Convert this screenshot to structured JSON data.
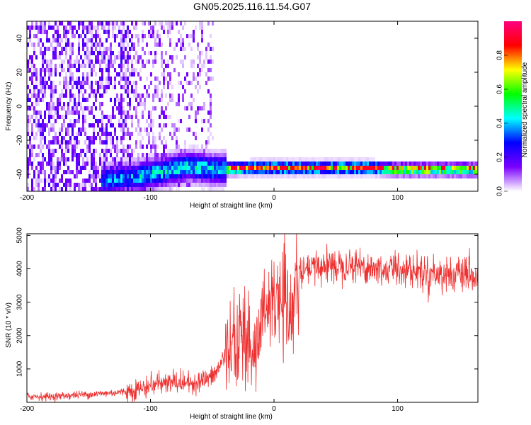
{
  "figure_title": "GN05.2025.116.11.54.G07",
  "chart_data": [
    {
      "type": "heatmap",
      "title": "GN05.2025.116.11.54.G07",
      "xlabel": "Height of straight line (km)",
      "ylabel": "Frequency (Hz)",
      "xlim": [
        -200,
        165
      ],
      "ylim": [
        -50,
        50
      ],
      "xticks": [
        "-200",
        "-100",
        "0",
        "100"
      ],
      "xtick_values": [
        -200,
        -100,
        0,
        100
      ],
      "yticks": [
        "40",
        "20",
        "0",
        "-20",
        "-40"
      ],
      "ytick_values": [
        40,
        20,
        0,
        -20,
        -40
      ],
      "colorbar": {
        "label": "Normalized spectral amplitude",
        "range": [
          0,
          1
        ],
        "ticks": [
          "0.0",
          "0.2",
          "0.4",
          "0.6",
          "0.8"
        ],
        "tick_values": [
          0,
          0.2,
          0.4,
          0.6,
          0.8
        ],
        "colors": [
          "#ffffff",
          "#7b00ff",
          "#0000ff",
          "#00ffff",
          "#00ff00",
          "#ffff00",
          "#ff0000",
          "#ff0080"
        ]
      },
      "grid": false,
      "ridge": {
        "x": [
          -135,
          -110,
          -90,
          -70,
          -50,
          -35,
          -20,
          0,
          50,
          80,
          100,
          165
        ],
        "y": [
          -42,
          -40,
          -37,
          -34,
          -36,
          -35.5,
          -35,
          -35,
          -35,
          -35,
          -36,
          -36
        ]
      },
      "noise_region_x": [
        -200,
        -50
      ]
    },
    {
      "type": "line",
      "xlabel": "Height of straight line (km)",
      "ylabel": "SNR (10 * v/v)",
      "xlim": [
        -200,
        165
      ],
      "ylim": [
        0,
        5050
      ],
      "xticks": [
        "-200",
        "-100",
        "0",
        "100"
      ],
      "xtick_values": [
        -200,
        -100,
        0,
        100
      ],
      "yticks": [
        "1000",
        "2000",
        "3000",
        "4000",
        "5000"
      ],
      "ytick_values": [
        1000,
        2000,
        3000,
        4000,
        5000
      ],
      "grid": false,
      "line_color": "#ee3030",
      "series": [
        {
          "x": [
            -200,
            -180,
            -160,
            -140,
            -120,
            -100,
            -90,
            -80,
            -70,
            -60,
            -50,
            -45,
            -40,
            -35,
            -30,
            -25,
            -20,
            -15,
            -10,
            -5,
            0,
            5,
            10,
            15,
            20,
            25,
            30,
            40,
            50,
            60,
            70,
            80,
            90,
            100,
            110,
            120,
            130,
            140,
            150,
            160,
            165
          ],
          "values": [
            180,
            170,
            220,
            260,
            320,
            480,
            560,
            600,
            560,
            640,
            750,
            1000,
            1400,
            1700,
            2000,
            2500,
            1900,
            1500,
            2600,
            3000,
            3100,
            3000,
            2800,
            2700,
            3800,
            3900,
            4000,
            4100,
            4100,
            4150,
            4100,
            4000,
            3950,
            4050,
            3950,
            3900,
            3850,
            3850,
            3800,
            3750,
            3700
          ]
        }
      ]
    }
  ]
}
